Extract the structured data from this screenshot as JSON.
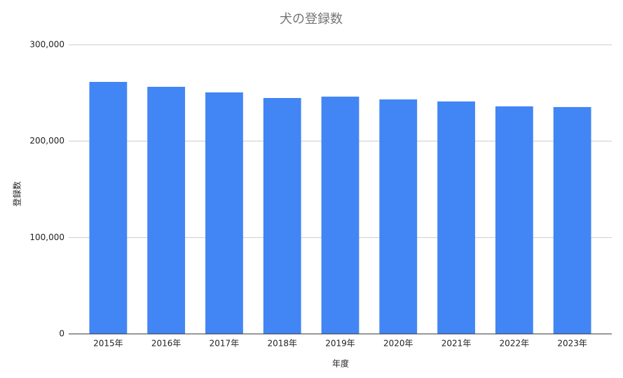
{
  "chart_data": {
    "type": "bar",
    "title": "犬の登録数",
    "x_label": "年度",
    "y_label": "登録数",
    "categories": [
      "2015年",
      "2016年",
      "2017年",
      "2018年",
      "2019年",
      "2020年",
      "2021年",
      "2022年",
      "2023年"
    ],
    "values": [
      261500,
      256400,
      250600,
      244800,
      246200,
      243300,
      241200,
      236100,
      235400
    ],
    "color": "#4285f4",
    "ylim": [
      0,
      300000
    ],
    "yticks": [
      0,
      {
        "value": 100000,
        "label": "100,000"
      },
      {
        "value": 200000,
        "label": "200,000"
      },
      {
        "value": 300000,
        "label": "300,000"
      }
    ],
    "grid": true
  }
}
